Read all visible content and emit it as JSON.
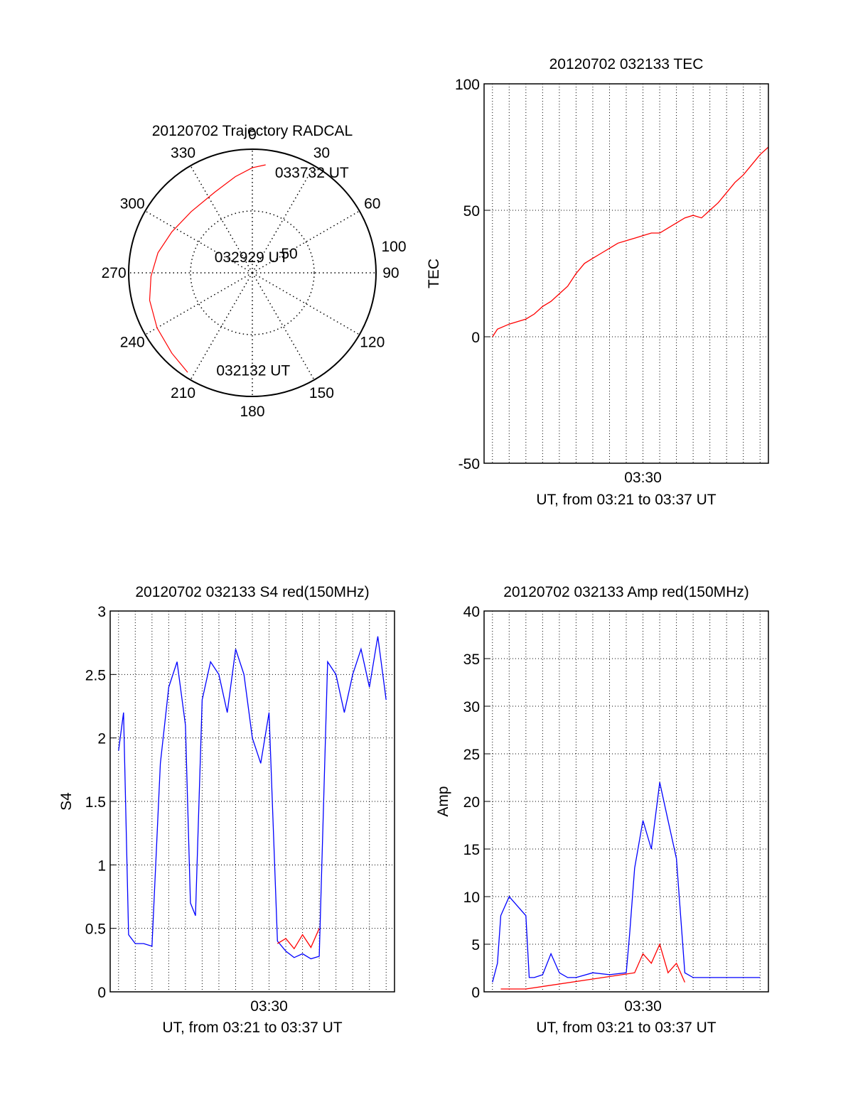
{
  "chart_data": [
    {
      "type": "polar",
      "title": "20120702 Trajectory RADCAL",
      "angle_labels": [
        "0",
        "30",
        "60",
        "90",
        "120",
        "150",
        "180",
        "210",
        "240",
        "270",
        "300",
        "330"
      ],
      "angles_deg": [
        0,
        30,
        60,
        90,
        120,
        150,
        180,
        210,
        240,
        270,
        300,
        330
      ],
      "radius_labels": [
        "50",
        "100"
      ],
      "radius_values": [
        50,
        100
      ],
      "rmax": 100,
      "trajectory": {
        "color": "#ff0000",
        "points": [
          {
            "az": 213,
            "r": 96
          },
          {
            "az": 225,
            "r": 92
          },
          {
            "az": 240,
            "r": 89
          },
          {
            "az": 255,
            "r": 86
          },
          {
            "az": 268,
            "r": 82
          },
          {
            "az": 282,
            "r": 78
          },
          {
            "az": 297,
            "r": 73
          },
          {
            "az": 315,
            "r": 70
          },
          {
            "az": 335,
            "r": 72
          },
          {
            "az": 350,
            "r": 79
          },
          {
            "az": 0,
            "r": 85
          },
          {
            "az": 7,
            "r": 88
          }
        ]
      },
      "annotations": [
        {
          "text": "033732 UT",
          "az": 15,
          "r": 84
        },
        {
          "text": "032929 UT",
          "az": 295,
          "r": 30
        },
        {
          "text": "032132 UT",
          "az": 198,
          "r": 83
        }
      ]
    },
    {
      "type": "line",
      "title": "20120702 032133 TEC",
      "xlabel": "UT, from 03:21 to 03:37 UT",
      "ylabel": "TEC",
      "x_unit": "minutes after 03:21 UT",
      "xlim": [
        -0.5,
        16.5
      ],
      "ylim": [
        -50,
        100
      ],
      "yticks": [
        "-50",
        "0",
        "50",
        "100"
      ],
      "ytick_values": [
        -50,
        0,
        50,
        100
      ],
      "xticks": [
        "03:30"
      ],
      "xtick_values": [
        9
      ],
      "grid": true,
      "series": [
        {
          "color": "#ff0000",
          "x": [
            0,
            0.3,
            1,
            2,
            2.5,
            3,
            3.5,
            4,
            4.5,
            5,
            5.5,
            6,
            6.5,
            7,
            7.5,
            8,
            8.5,
            9,
            9.5,
            10,
            10.5,
            11,
            11.5,
            12,
            12.5,
            13,
            13.5,
            14,
            14.5,
            15,
            15.5,
            16,
            16.5
          ],
          "y": [
            0,
            3,
            5,
            7,
            9,
            12,
            14,
            17,
            20,
            25,
            29,
            31,
            33,
            35,
            37,
            38,
            39,
            40,
            41,
            41,
            43,
            45,
            47,
            48,
            47,
            50,
            53,
            57,
            61,
            64,
            68,
            72,
            75
          ]
        }
      ]
    },
    {
      "type": "line",
      "title": "20120702 032133 S4 red(150MHz)",
      "xlabel": "UT, from 03:21 to 03:37 UT",
      "ylabel": "S4",
      "x_unit": "minutes after 03:21 UT",
      "xlim": [
        -0.5,
        16.5
      ],
      "ylim": [
        0,
        3
      ],
      "yticks": [
        "0",
        "0.5",
        "1",
        "1.5",
        "2",
        "2.5",
        "3"
      ],
      "ytick_values": [
        0,
        0.5,
        1,
        1.5,
        2,
        2.5,
        3
      ],
      "xticks": [
        "03:30"
      ],
      "xtick_values": [
        9
      ],
      "grid": true,
      "series": [
        {
          "color": "#0000ff",
          "x": [
            0,
            0.3,
            0.6,
            1,
            1.5,
            2,
            2.5,
            3,
            3.5,
            4,
            4.3,
            4.6,
            5,
            5.5,
            6,
            6.5,
            7,
            7.5,
            8,
            8.5,
            9,
            9.5,
            10,
            10.5,
            11,
            11.5,
            12,
            12.5,
            13,
            13.5,
            14,
            14.5,
            15,
            15.5,
            16
          ],
          "y": [
            1.9,
            2.2,
            0.45,
            0.38,
            0.38,
            0.36,
            1.8,
            2.4,
            2.6,
            2.1,
            0.7,
            0.6,
            2.3,
            2.6,
            2.5,
            2.2,
            2.7,
            2.5,
            2.0,
            1.8,
            2.2,
            0.4,
            0.32,
            0.27,
            0.3,
            0.26,
            0.28,
            2.6,
            2.5,
            2.2,
            2.5,
            2.7,
            2.4,
            2.8,
            2.3
          ]
        },
        {
          "color": "#ff0000",
          "x": [
            9.5,
            10,
            10.5,
            11,
            11.5,
            12
          ],
          "y": [
            0.38,
            0.42,
            0.34,
            0.45,
            0.35,
            0.5
          ]
        }
      ]
    },
    {
      "type": "line",
      "title": "20120702 032133 Amp red(150MHz)",
      "xlabel": "UT, from 03:21 to 03:37 UT",
      "ylabel": "Amp",
      "x_unit": "minutes after 03:21 UT",
      "xlim": [
        -0.5,
        16.5
      ],
      "ylim": [
        0,
        40
      ],
      "yticks": [
        "0",
        "5",
        "10",
        "15",
        "20",
        "25",
        "30",
        "35",
        "40"
      ],
      "ytick_values": [
        0,
        5,
        10,
        15,
        20,
        25,
        30,
        35,
        40
      ],
      "xticks": [
        "03:30"
      ],
      "xtick_values": [
        9
      ],
      "grid": true,
      "series": [
        {
          "color": "#0000ff",
          "x": [
            0,
            0.3,
            0.5,
            1,
            1.5,
            2,
            2.2,
            2.5,
            3,
            3.5,
            4,
            4.5,
            5,
            6,
            7,
            8,
            8.2,
            8.5,
            9,
            9.5,
            10,
            10.5,
            11,
            11.5,
            12,
            13,
            14,
            15,
            16
          ],
          "y": [
            1,
            3,
            8,
            10,
            9,
            8,
            1.5,
            1.5,
            1.8,
            4,
            2,
            1.5,
            1.5,
            2,
            1.8,
            2,
            6,
            13,
            18,
            15,
            22,
            18,
            14,
            2,
            1.5,
            1.5,
            1.5,
            1.5,
            1.5
          ]
        },
        {
          "color": "#ff0000",
          "x": [
            0.5,
            1,
            1.5,
            2,
            8.5,
            9,
            9.5,
            10,
            10.5,
            11,
            11.5
          ],
          "y": [
            0.3,
            0.3,
            0.3,
            0.3,
            2,
            4,
            3,
            5,
            2,
            3,
            1
          ]
        }
      ]
    }
  ]
}
